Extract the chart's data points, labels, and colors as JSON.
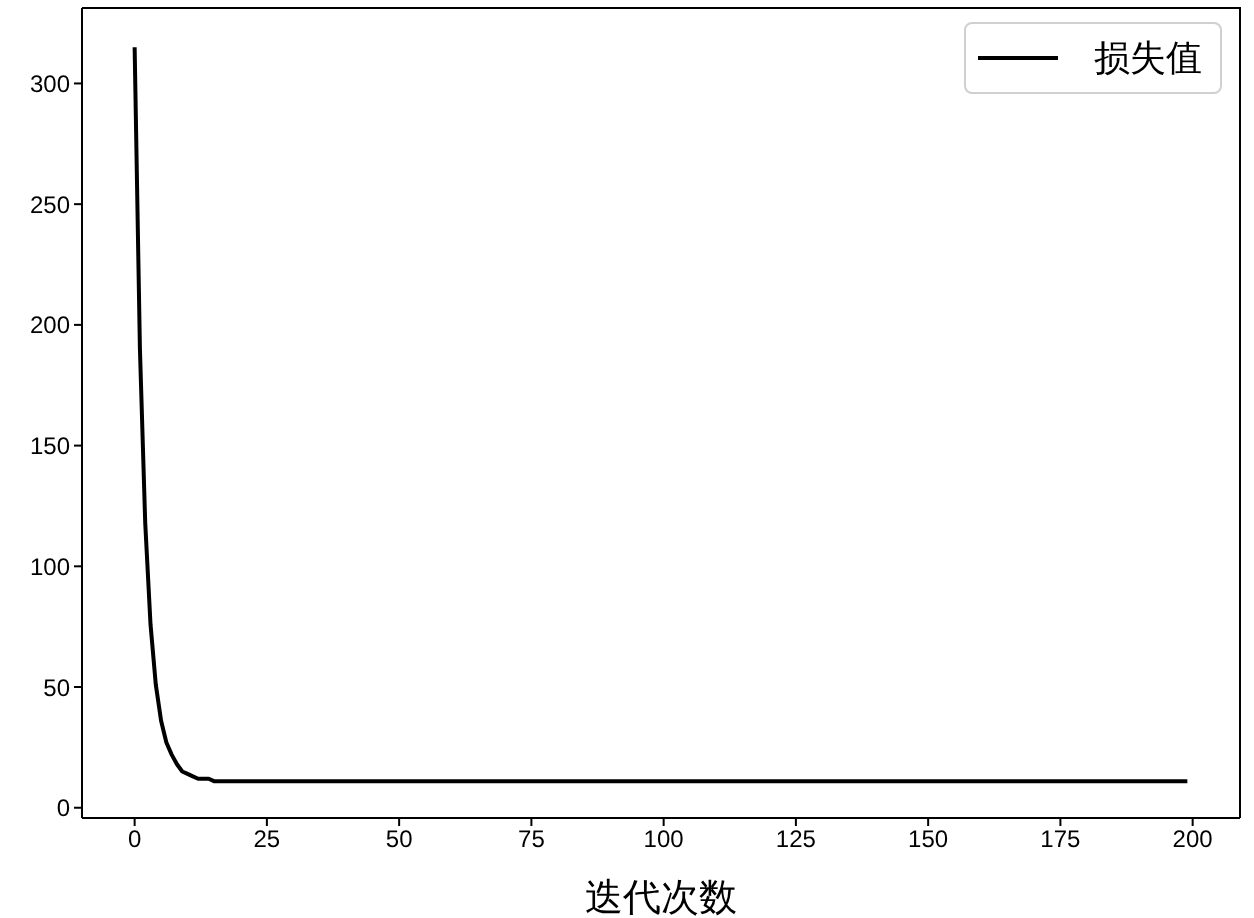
{
  "chart_data": {
    "type": "line",
    "xlabel": "迭代次数",
    "x": [
      0,
      1,
      2,
      3,
      4,
      5,
      6,
      7,
      8,
      9,
      10,
      11,
      12,
      13,
      14,
      15,
      17,
      20,
      25,
      30,
      40,
      50,
      75,
      100,
      125,
      150,
      175,
      199
    ],
    "series": [
      {
        "name": "损失值",
        "color": "#000000",
        "values": [
          315,
          190,
          118,
          76,
          51,
          36,
          27,
          22,
          18,
          15,
          14,
          13,
          12,
          12,
          12,
          11,
          11,
          11,
          11,
          11,
          11,
          11,
          11,
          11,
          11,
          11,
          11,
          11
        ]
      }
    ],
    "xlim": [
      -9.95,
      208.95
    ],
    "ylim": [
      -4.25,
      331.25
    ],
    "xticks": [
      0,
      25,
      50,
      75,
      100,
      125,
      150,
      175,
      200
    ],
    "yticks": [
      0,
      50,
      100,
      150,
      200,
      250,
      300
    ],
    "legend": "top right",
    "marker": "none",
    "line_style": "solid"
  }
}
